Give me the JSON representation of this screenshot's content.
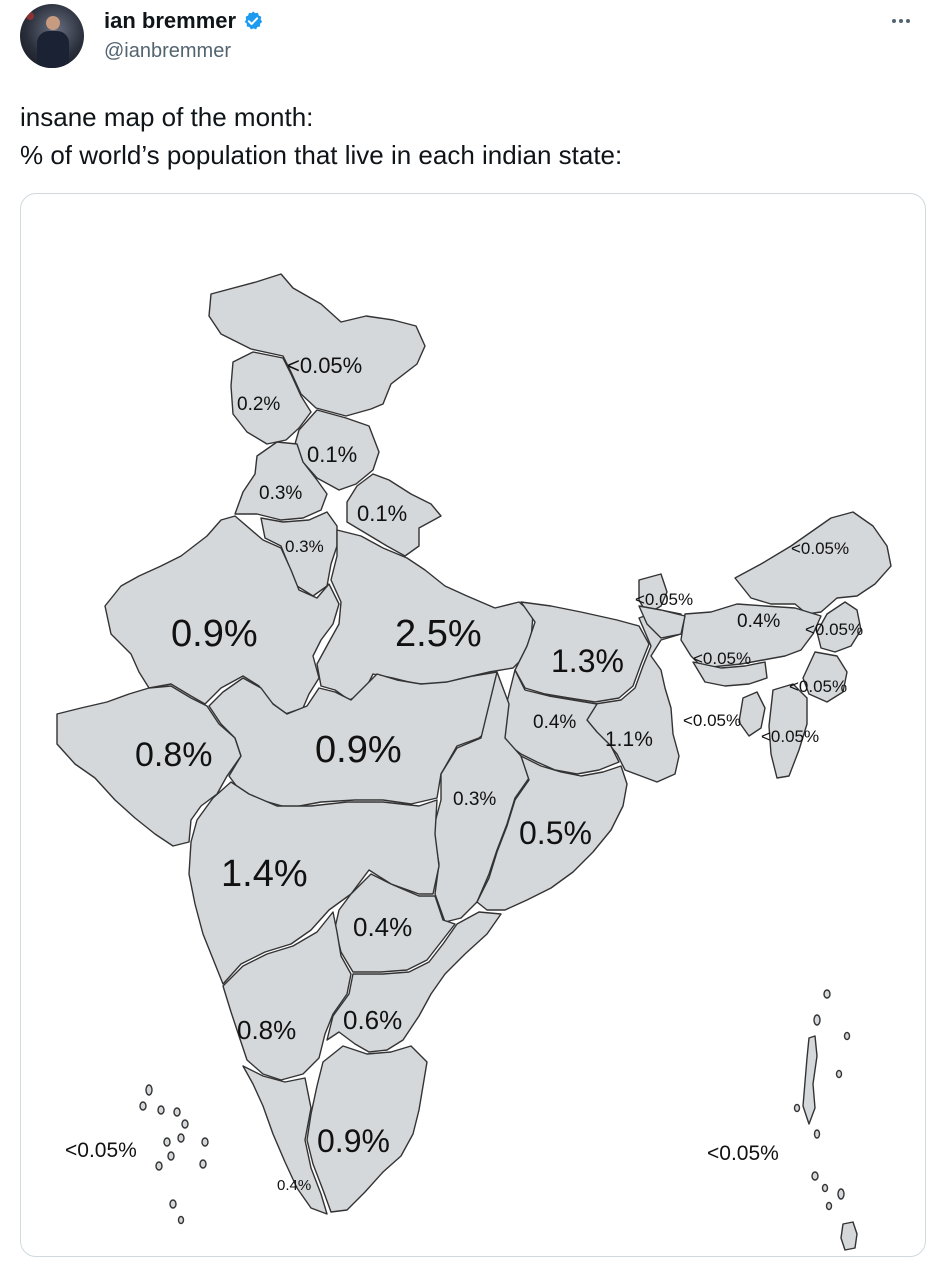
{
  "author": {
    "name": "ian bremmer",
    "handle": "@ianbremmer",
    "verified": true,
    "verified_color": "#1d9bf0",
    "avatar_icon": "profile-photo"
  },
  "menu_icon": "more-horizontal-icon",
  "tweet": {
    "lines": [
      "insane map of the month:",
      "% of world’s population that live in each indian state:"
    ]
  },
  "map": {
    "fill_color": "#d4d8db",
    "border_color": "#333333",
    "labels": {
      "ladakh": "<0.05%",
      "jammu_kashmir": "0.2%",
      "himachal": "0.1%",
      "punjab": "0.3%",
      "uttarakhand": "0.1%",
      "haryana": "0.3%",
      "rajasthan": "0.9%",
      "uttar_pradesh": "2.5%",
      "bihar": "1.3%",
      "sikkim": "<0.05%",
      "arunachal": "<0.05%",
      "assam": "0.4%",
      "nagaland": "<0.05%",
      "meghalaya": "<0.05%",
      "manipur": "<0.05%",
      "tripura": "<0.05%",
      "mizoram": "<0.05%",
      "jharkhand": "0.4%",
      "west_bengal": "1.1%",
      "gujarat": "0.8%",
      "madhya_pradesh": "0.9%",
      "chhattisgarh": "0.3%",
      "odisha": "0.5%",
      "maharashtra": "1.4%",
      "telangana": "0.4%",
      "karnataka": "0.8%",
      "andhra_pradesh": "0.6%",
      "tamil_nadu": "0.9%",
      "kerala": "0.4%",
      "lakshadweep": "<0.05%",
      "andaman_nicobar": "<0.05%"
    }
  }
}
